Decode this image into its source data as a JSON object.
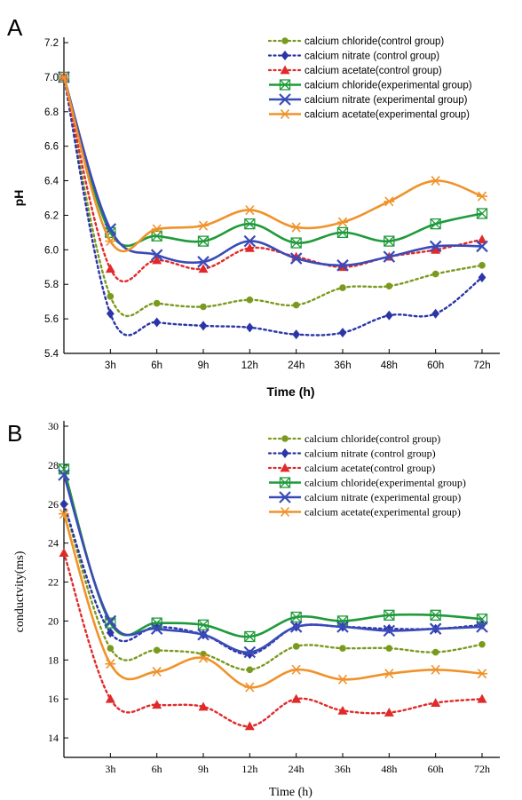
{
  "chart_data": [
    {
      "panel_label": "A",
      "type": "line",
      "xlabel": "Time (h)",
      "ylabel": "pH",
      "categories": [
        "3h",
        "6h",
        "9h",
        "12h",
        "24h",
        "36h",
        "48h",
        "60h",
        "72h"
      ],
      "start_value_at_origin": true,
      "ylim": [
        5.4,
        7.2
      ],
      "yticks": [
        5.4,
        5.6,
        5.8,
        6.0,
        6.2,
        6.4,
        6.6,
        6.8,
        7.0,
        7.2
      ],
      "ytick_format": "1",
      "grid": false,
      "legend_position": "top-right",
      "series": [
        {
          "name": "calcium chloride(control group)",
          "start": 7.0,
          "values": [
            5.73,
            5.69,
            5.67,
            5.71,
            5.68,
            5.78,
            5.79,
            5.86,
            5.91
          ],
          "color": "#7a9a1e",
          "marker": "circle",
          "style": "dotted"
        },
        {
          "name": "calcium nitrate (control group)",
          "start": 7.0,
          "values": [
            5.63,
            5.58,
            5.56,
            5.55,
            5.51,
            5.52,
            5.62,
            5.63,
            5.84
          ],
          "color": "#2b35a8",
          "marker": "diamond",
          "style": "dotted"
        },
        {
          "name": "calcium acetate(control group)",
          "start": 7.0,
          "values": [
            5.89,
            5.94,
            5.89,
            6.01,
            5.96,
            5.9,
            5.96,
            6.0,
            6.06
          ],
          "color": "#e02a2a",
          "marker": "triangle",
          "style": "dotted"
        },
        {
          "name": "calcium chloride(experimental group)",
          "start": 7.0,
          "values": [
            6.1,
            6.08,
            6.05,
            6.15,
            6.04,
            6.1,
            6.05,
            6.15,
            6.21
          ],
          "color": "#1f9a3a",
          "marker": "box-x",
          "style": "solid"
        },
        {
          "name": "calcium nitrate (experimental group)",
          "start": 7.0,
          "values": [
            6.12,
            5.97,
            5.93,
            6.05,
            5.95,
            5.91,
            5.96,
            6.02,
            6.02
          ],
          "color": "#3a4bb8",
          "marker": "x",
          "style": "solid"
        },
        {
          "name": "calcium acetate(experimental group)",
          "start": 7.0,
          "values": [
            6.05,
            6.12,
            6.14,
            6.23,
            6.13,
            6.16,
            6.28,
            6.4,
            6.31
          ],
          "color": "#f0922a",
          "marker": "asterisk",
          "style": "solid"
        }
      ]
    },
    {
      "panel_label": "B",
      "type": "line",
      "xlabel": "Time (h)",
      "ylabel": "conductvity(ms)",
      "categories": [
        "3h",
        "6h",
        "9h",
        "12h",
        "24h",
        "36h",
        "48h",
        "60h",
        "72h"
      ],
      "start_value_at_origin": true,
      "ylim": [
        13,
        30
      ],
      "yticks": [
        14,
        16,
        18,
        20,
        22,
        24,
        26,
        28,
        30
      ],
      "ytick_format": "0",
      "grid": false,
      "legend_position": "top-right",
      "series": [
        {
          "name": "calcium chloride(control group)",
          "start": 26.0,
          "values": [
            18.6,
            18.5,
            18.3,
            17.5,
            18.7,
            18.6,
            18.6,
            18.4,
            18.8
          ],
          "color": "#7a9a1e",
          "marker": "circle",
          "style": "dotted"
        },
        {
          "name": "calcium nitrate (control group)",
          "start": 26.0,
          "values": [
            19.4,
            19.7,
            19.3,
            18.3,
            19.7,
            19.7,
            19.6,
            19.6,
            19.8
          ],
          "color": "#2b35a8",
          "marker": "diamond",
          "style": "dotted"
        },
        {
          "name": "calcium acetate(control group)",
          "start": 23.5,
          "values": [
            16.0,
            15.7,
            15.6,
            14.6,
            16.0,
            15.4,
            15.3,
            15.8,
            16.0
          ],
          "color": "#e02a2a",
          "marker": "triangle",
          "style": "dotted"
        },
        {
          "name": "calcium chloride(experimental group)",
          "start": 27.8,
          "values": [
            19.9,
            19.9,
            19.8,
            19.2,
            20.2,
            20.0,
            20.3,
            20.3,
            20.1
          ],
          "color": "#1f9a3a",
          "marker": "box-x",
          "style": "solid"
        },
        {
          "name": "calcium nitrate (experimental group)",
          "start": 27.5,
          "values": [
            20.0,
            19.6,
            19.3,
            18.4,
            19.7,
            19.7,
            19.5,
            19.6,
            19.7
          ],
          "color": "#3a4bb8",
          "marker": "x",
          "style": "solid"
        },
        {
          "name": "calcium acetate(experimental group)",
          "start": 25.5,
          "values": [
            17.8,
            17.4,
            18.1,
            16.6,
            17.5,
            17.0,
            17.3,
            17.5,
            17.3
          ],
          "color": "#f0922a",
          "marker": "asterisk",
          "style": "solid"
        }
      ]
    }
  ]
}
